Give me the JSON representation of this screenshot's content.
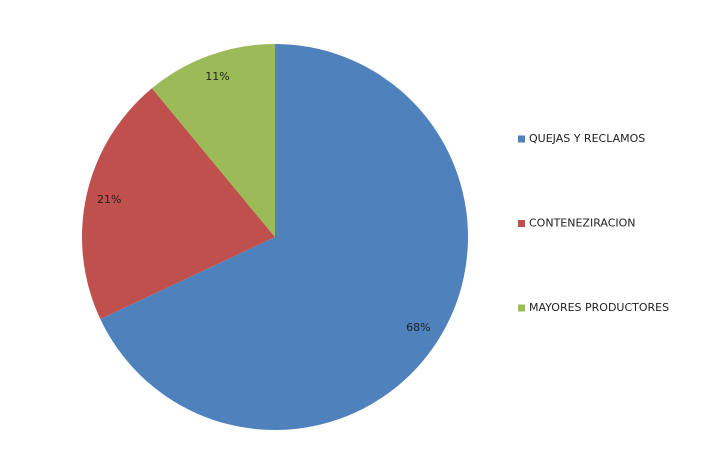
{
  "chart_data": {
    "type": "pie",
    "categories": [
      "QUEJAS Y RECLAMOS",
      "CONTENEZIRACION",
      "MAYORES PRODUCTORES"
    ],
    "values": [
      68,
      21,
      11
    ],
    "value_labels": [
      "68%",
      "21%",
      "11%"
    ],
    "colors": [
      "#4f81bd",
      "#c0504d",
      "#9bbb59"
    ],
    "legend": "right"
  }
}
